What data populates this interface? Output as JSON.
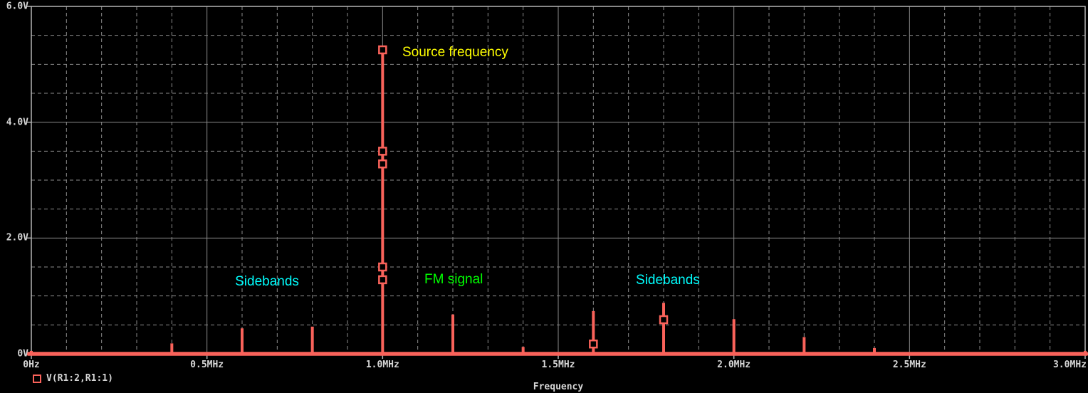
{
  "window": {
    "background": "#000000",
    "grid_color": "#8b8b8b",
    "border_color": "#b6b6b6",
    "text_color": "#d6d6d6"
  },
  "chart_data": {
    "type": "bar",
    "subtype": "frequency-spectrum-stem-plot",
    "title": "",
    "xlabel": "Frequency",
    "ylabel": "",
    "x_unit": "MHz",
    "y_unit": "V",
    "xlim": [
      0,
      3.0
    ],
    "ylim": [
      0,
      6.0
    ],
    "x_major_step": 0.5,
    "x_minor_step": 0.1,
    "y_major_step": 2.0,
    "y_minor_step": 0.5,
    "grid": "major-solid-minor-dashed",
    "x_ticks": [
      {
        "value": 0.0,
        "label": "0Hz"
      },
      {
        "value": 0.5,
        "label": "0.5MHz"
      },
      {
        "value": 1.0,
        "label": "1.0MHz"
      },
      {
        "value": 1.5,
        "label": "1.5MHz"
      },
      {
        "value": 2.0,
        "label": "2.0MHz"
      },
      {
        "value": 2.5,
        "label": "2.5MHz"
      },
      {
        "value": 3.0,
        "label": "3.0MHz"
      }
    ],
    "y_ticks": [
      {
        "value": 0.0,
        "label": "0V"
      },
      {
        "value": 2.0,
        "label": "2.0V"
      },
      {
        "value": 4.0,
        "label": "4.0V"
      },
      {
        "value": 6.0,
        "label": "6.0V"
      }
    ],
    "series": [
      {
        "name": "V(R1:2,R1:1)",
        "color": "#f9625a",
        "points": [
          {
            "f_mhz": 0.0,
            "v": 0.05
          },
          {
            "f_mhz": 0.4,
            "v": 0.18
          },
          {
            "f_mhz": 0.6,
            "v": 0.44
          },
          {
            "f_mhz": 0.8,
            "v": 0.47
          },
          {
            "f_mhz": 1.0,
            "v": 5.32
          },
          {
            "f_mhz": 1.2,
            "v": 0.68
          },
          {
            "f_mhz": 1.4,
            "v": 0.12
          },
          {
            "f_mhz": 1.6,
            "v": 0.74
          },
          {
            "f_mhz": 1.8,
            "v": 0.88
          },
          {
            "f_mhz": 2.0,
            "v": 0.6
          },
          {
            "f_mhz": 2.2,
            "v": 0.29
          },
          {
            "f_mhz": 2.4,
            "v": 0.1
          },
          {
            "f_mhz": 2.6,
            "v": 0.03
          },
          {
            "f_mhz": 3.0,
            "v": 0.05
          }
        ],
        "data_point_markers": [
          {
            "f_mhz": 1.0,
            "v": 5.25
          },
          {
            "f_mhz": 1.0,
            "v": 3.5
          },
          {
            "f_mhz": 1.0,
            "v": 3.28
          },
          {
            "f_mhz": 1.0,
            "v": 1.5
          },
          {
            "f_mhz": 1.0,
            "v": 1.28
          },
          {
            "f_mhz": 1.6,
            "v": 0.17
          },
          {
            "f_mhz": 1.8,
            "v": 0.59
          }
        ]
      }
    ],
    "annotations": [
      {
        "text": "Source frequency",
        "color": "#ffff00",
        "x_mhz": 1.056,
        "y_v": 5.2
      },
      {
        "text": "Sidebands",
        "color": "#00ffff",
        "x_mhz": 0.58,
        "y_v": 1.24
      },
      {
        "text": "FM signal",
        "color": "#00ff00",
        "x_mhz": 1.119,
        "y_v": 1.28
      },
      {
        "text": "Sidebands",
        "color": "#00ffff",
        "x_mhz": 1.721,
        "y_v": 1.27
      }
    ]
  },
  "legend": {
    "marker": "square-outline-icon",
    "label": "V(R1:2,R1:1)"
  },
  "axis_titles": {
    "x": "Frequency"
  }
}
